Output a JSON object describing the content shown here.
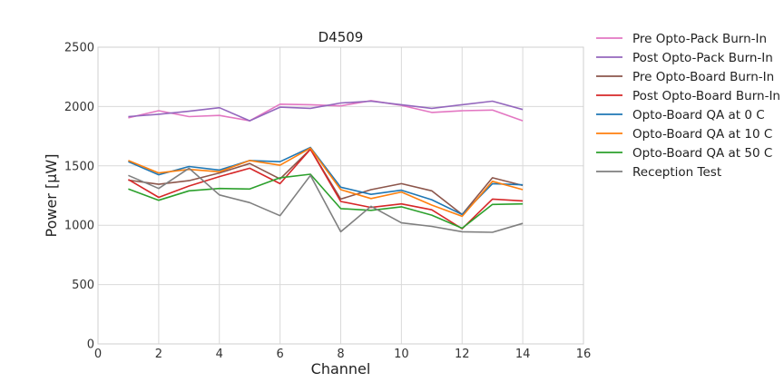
{
  "chart_data": {
    "type": "line",
    "title": "D4509",
    "xlabel": "Channel",
    "ylabel": "Power [μW]",
    "xlim": [
      0,
      16
    ],
    "ylim": [
      0,
      2500
    ],
    "xticks": [
      0,
      2,
      4,
      6,
      8,
      10,
      12,
      14,
      16
    ],
    "yticks": [
      0,
      500,
      1000,
      1500,
      2000,
      2500
    ],
    "grid": true,
    "legend_position": "outside-right",
    "x": [
      1,
      2,
      3,
      4,
      5,
      6,
      7,
      8,
      9,
      10,
      11,
      12,
      13,
      14
    ],
    "series": [
      {
        "name": "Pre Opto-Pack Burn-In",
        "color": "#e377c2",
        "values": [
          1905,
          1965,
          1915,
          1925,
          1880,
          2020,
          2015,
          2005,
          2050,
          2010,
          1950,
          1965,
          1970,
          1880
        ]
      },
      {
        "name": "Post Opto-Pack Burn-In",
        "color": "#9467bd",
        "values": [
          1915,
          1935,
          1960,
          1990,
          1880,
          1995,
          1985,
          2030,
          2045,
          2015,
          1985,
          2015,
          2045,
          1975
        ]
      },
      {
        "name": "Pre Opto-Board Burn-In",
        "color": "#8c564b",
        "values": [
          1380,
          1345,
          1375,
          1440,
          1520,
          1390,
          1640,
          1220,
          1300,
          1350,
          1290,
          1090,
          1400,
          1335
        ]
      },
      {
        "name": "Post Opto-Board Burn-In",
        "color": "#d62728",
        "values": [
          1385,
          1235,
          1330,
          1410,
          1480,
          1350,
          1640,
          1200,
          1150,
          1180,
          1130,
          970,
          1220,
          1205
        ]
      },
      {
        "name": "Opto-Board QA at 0 C",
        "color": "#1f77b4",
        "values": [
          1535,
          1425,
          1495,
          1465,
          1545,
          1535,
          1655,
          1320,
          1260,
          1295,
          1215,
          1090,
          1350,
          1340
        ]
      },
      {
        "name": "Opto-Board QA at 10 C",
        "color": "#ff7f0e",
        "values": [
          1545,
          1440,
          1470,
          1450,
          1545,
          1505,
          1650,
          1300,
          1225,
          1280,
          1170,
          1075,
          1370,
          1300
        ]
      },
      {
        "name": "Opto-Board QA at 50 C",
        "color": "#2ca02c",
        "values": [
          1305,
          1210,
          1290,
          1310,
          1305,
          1400,
          1430,
          1140,
          1125,
          1155,
          1085,
          975,
          1175,
          1180
        ]
      },
      {
        "name": "Reception Test",
        "color": "#7f7f7f",
        "values": [
          1420,
          1310,
          1480,
          1255,
          1190,
          1080,
          1420,
          945,
          1160,
          1020,
          990,
          945,
          940,
          1015
        ]
      }
    ]
  }
}
